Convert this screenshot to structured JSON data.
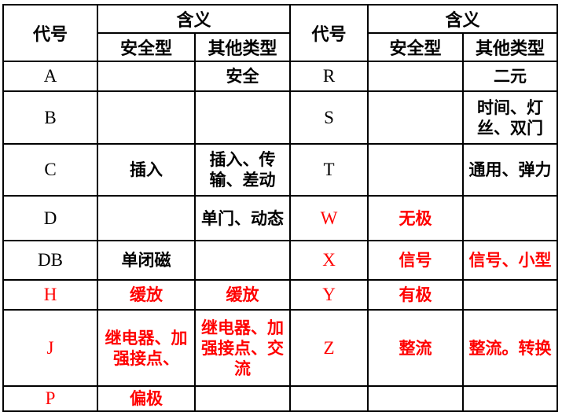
{
  "colors": {
    "text_black": "#000000",
    "text_red": "#ff0000",
    "border": "#000000",
    "background": "#ffffff"
  },
  "table": {
    "header": {
      "code_label": "代号",
      "meaning_label": "含义",
      "safety_label": "安全型",
      "other_label": "其他类型"
    },
    "rows": [
      {
        "left": {
          "code": "A",
          "safety": "",
          "other": "安全",
          "color": "black"
        },
        "right": {
          "code": "R",
          "safety": "",
          "other": "二元",
          "color": "black"
        }
      },
      {
        "left": {
          "code": "B",
          "safety": "",
          "other": "",
          "color": "black"
        },
        "right": {
          "code": "S",
          "safety": "",
          "other": "时间、灯丝、双门",
          "color": "black"
        }
      },
      {
        "left": {
          "code": "C",
          "safety": "插入",
          "other": "插入、传输、差动",
          "color": "black"
        },
        "right": {
          "code": "T",
          "safety": "",
          "other": "通用、弹力",
          "color": "black"
        }
      },
      {
        "left": {
          "code": "D",
          "safety": "",
          "other": "单门、动态",
          "color": "black"
        },
        "right": {
          "code": "W",
          "safety": "无极",
          "other": "",
          "color": "red"
        }
      },
      {
        "left": {
          "code": "DB",
          "safety": "单闭磁",
          "other": "",
          "color": "black"
        },
        "right": {
          "code": "X",
          "safety": "信号",
          "other": "信号、小型",
          "color": "red"
        }
      },
      {
        "left": {
          "code": "H",
          "safety": "缓放",
          "other": "缓放",
          "color": "red"
        },
        "right": {
          "code": "Y",
          "safety": "有极",
          "other": "",
          "color": "red"
        }
      },
      {
        "left": {
          "code": "J",
          "safety": "继电器、加强接点、",
          "other": "继电器、加强接点、交流",
          "color": "red"
        },
        "right": {
          "code": "Z",
          "safety": "整流",
          "other": "整流。转换",
          "color": "red"
        }
      },
      {
        "left": {
          "code": "P",
          "safety": "偏极",
          "other": "",
          "color": "red"
        },
        "right": {
          "code": "",
          "safety": "",
          "other": "",
          "color": "black"
        }
      }
    ]
  }
}
